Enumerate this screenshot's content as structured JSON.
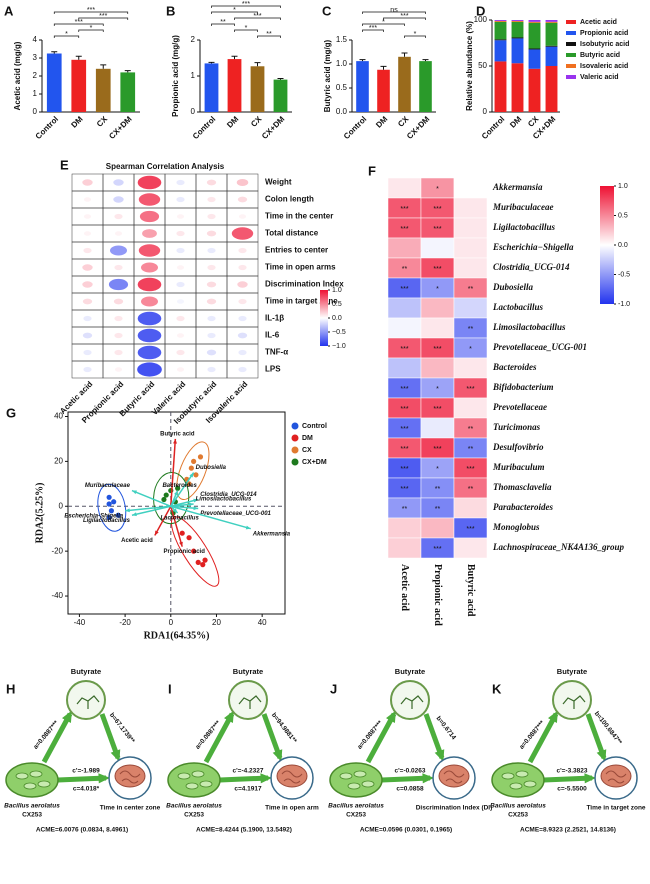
{
  "chart_data": [
    {
      "type": "bar",
      "label": "A",
      "y_label": "Acetic acid (mg/g)",
      "categories": [
        "Control",
        "DM",
        "CX",
        "CX+DM"
      ],
      "values": [
        3.25,
        2.9,
        2.4,
        2.2
      ],
      "errors": [
        0.1,
        0.2,
        0.22,
        0.1
      ],
      "colors": [
        "#2255ee",
        "#ee2222",
        "#9a6b1c",
        "#2a9a2a"
      ],
      "ylim": [
        0,
        4
      ],
      "yticks": [
        0,
        1,
        2,
        3,
        4
      ],
      "brackets": [
        {
          "pair": [
            "Control",
            "CX+DM"
          ],
          "label": "***"
        },
        {
          "pair": [
            "DM",
            "CX+DM"
          ],
          "label": "***"
        },
        {
          "pair": [
            "Control",
            "CX"
          ],
          "label": "***"
        },
        {
          "pair": [
            "DM",
            "CX"
          ],
          "label": "*"
        },
        {
          "pair": [
            "Control",
            "DM"
          ],
          "label": "*"
        }
      ]
    },
    {
      "type": "bar",
      "label": "B",
      "y_label": "Propionic acid (mg/g)",
      "categories": [
        "Control",
        "DM",
        "CX",
        "CX+DM"
      ],
      "values": [
        1.35,
        1.47,
        1.27,
        0.9
      ],
      "errors": [
        0.03,
        0.08,
        0.1,
        0.03
      ],
      "colors": [
        "#2255ee",
        "#ee2222",
        "#9a6b1c",
        "#2a9a2a"
      ],
      "ylim": [
        0,
        2
      ],
      "yticks": [
        0,
        1,
        2
      ],
      "brackets": [
        {
          "pair": [
            "Control",
            "CX+DM"
          ],
          "label": "***"
        },
        {
          "pair": [
            "Control",
            "CX"
          ],
          "label": "*"
        },
        {
          "pair": [
            "DM",
            "CX+DM"
          ],
          "label": "***"
        },
        {
          "pair": [
            "Control",
            "DM"
          ],
          "label": "**"
        },
        {
          "pair": [
            "DM",
            "CX"
          ],
          "label": "*"
        },
        {
          "pair": [
            "CX",
            "CX+DM"
          ],
          "label": "**"
        }
      ]
    },
    {
      "type": "bar",
      "label": "C",
      "y_label": "Butyric acid (mg/g)",
      "categories": [
        "Control",
        "DM",
        "CX",
        "CX+DM"
      ],
      "values": [
        1.06,
        0.88,
        1.15,
        1.06
      ],
      "errors": [
        0.03,
        0.07,
        0.08,
        0.03
      ],
      "colors": [
        "#2255ee",
        "#ee2222",
        "#9a6b1c",
        "#2a9a2a"
      ],
      "ylim": [
        0,
        1.5
      ],
      "yticks": [
        {
          "value": 0,
          "label": "0.0"
        },
        0.5,
        {
          "value": 1,
          "label": "1.0"
        },
        1.5
      ],
      "brackets": [
        {
          "pair": [
            "Control",
            "CX+DM"
          ],
          "label": "ns"
        },
        {
          "pair": [
            "DM",
            "CX+DM"
          ],
          "label": "***"
        },
        {
          "pair": [
            "Control",
            "CX"
          ],
          "label": "*"
        },
        {
          "pair": [
            "Control",
            "DM"
          ],
          "label": "***"
        },
        {
          "pair": [
            "CX",
            "CX+DM"
          ],
          "label": "*"
        }
      ]
    },
    {
      "type": "stacked_bar",
      "label": "D",
      "y_label": "Relative abundance (%)",
      "categories": [
        "Control",
        "DM",
        "CX",
        "CX+DM"
      ],
      "ylim": [
        0,
        100
      ],
      "yticks": [
        0,
        50,
        100
      ],
      "series": [
        {
          "name": "Acetic acid",
          "color": "#ee2222",
          "values": [
            55,
            53,
            47,
            50
          ]
        },
        {
          "name": "Propionic acid",
          "color": "#2255ee",
          "values": [
            23,
            27,
            21,
            21
          ]
        },
        {
          "name": "Isobutyric acid",
          "color": "#111111",
          "values": [
            1,
            1,
            1,
            1
          ]
        },
        {
          "name": "Butyric acid",
          "color": "#2a9a2a",
          "values": [
            19,
            17,
            28,
            25
          ]
        },
        {
          "name": "Isovaleric acid",
          "color": "#f07020",
          "values": [
            1,
            1,
            1,
            1
          ]
        },
        {
          "name": "Valeric acid",
          "color": "#9933ee",
          "values": [
            1,
            1,
            2,
            2
          ]
        }
      ]
    },
    {
      "type": "bubble_matrix",
      "label": "E",
      "title": "Spearman Correlation Analysis",
      "rows": [
        "Weight",
        "Colon length",
        "Time in the center",
        "Total distance",
        "Entries to center",
        "Time in open arms",
        "Discrimination Index",
        "Time in target zone",
        "IL-1β",
        "IL-6",
        "TNF-α",
        "LPS"
      ],
      "columns": [
        "Acetic acid",
        "Propionic acid",
        "Butyric acid",
        "Valeric acid",
        "Isobutyric acid",
        "Isovaleric acid"
      ],
      "values": [
        [
          0.2,
          -0.2,
          0.8,
          -0.1,
          0.15,
          0.25
        ],
        [
          0.05,
          -0.2,
          0.7,
          -0.1,
          0.1,
          0.15
        ],
        [
          0.05,
          0.1,
          0.6,
          0.05,
          0.1,
          0.05
        ],
        [
          0.05,
          0.05,
          0.4,
          0.1,
          0.15,
          0.7
        ],
        [
          0.1,
          -0.5,
          0.7,
          -0.1,
          -0.1,
          0.1
        ],
        [
          0.2,
          0.1,
          0.5,
          0.05,
          0.1,
          0.1
        ],
        [
          0.2,
          -0.6,
          0.8,
          -0.1,
          0.15,
          0.2
        ],
        [
          0.15,
          0.15,
          0.5,
          -0.05,
          0.15,
          0.1
        ],
        [
          -0.1,
          0.1,
          -0.8,
          0.1,
          -0.1,
          -0.1
        ],
        [
          -0.15,
          0.1,
          -0.8,
          0.05,
          -0.1,
          -0.15
        ],
        [
          -0.1,
          0.1,
          -0.8,
          0.1,
          -0.15,
          -0.1
        ],
        [
          -0.1,
          0.05,
          -0.85,
          0.05,
          -0.1,
          -0.1
        ]
      ],
      "colormap": [
        "#2233ee",
        "#ffffff",
        "#ee1133"
      ],
      "clim": [
        -1,
        1
      ],
      "colorbar_ticks": [
        {
          "value": 1,
          "label": "1.0"
        },
        0.5,
        {
          "value": 0,
          "label": "0.0"
        },
        {
          "value": -0.5,
          "label": "−0.5"
        },
        {
          "value": -1,
          "label": "−1.0"
        }
      ]
    },
    {
      "type": "heatmap",
      "label": "F",
      "rows": [
        "Akkermansia",
        "Muribaculaceae",
        "Ligilactobacillus",
        "Escherichia−Shigella",
        "Clostridia_UCG-014",
        "Dubosiella",
        "Lactobacillus",
        "Limosilactobacillus",
        "Prevotellaceae_UCG-001",
        "Bacteroides",
        "Bifidobacterium",
        "Prevotellaceae",
        "Turicimonas",
        "Desulfovibrio",
        "Muribaculum",
        "Thomasclavelia",
        "Parabacteroides",
        "Monoglobus",
        "Lachnospiraceae_NK4A136_group"
      ],
      "columns": [
        "Acetic acid",
        "Propionic acid",
        "Butyric acid"
      ],
      "values": [
        [
          0.1,
          0.45,
          0.0
        ],
        [
          0.7,
          0.7,
          0.1
        ],
        [
          0.7,
          0.7,
          0.1
        ],
        [
          0.35,
          -0.05,
          0.1
        ],
        [
          0.5,
          0.75,
          0.1
        ],
        [
          -0.75,
          -0.5,
          0.55
        ],
        [
          -0.3,
          0.3,
          -0.2
        ],
        [
          -0.05,
          0.1,
          -0.6
        ],
        [
          0.7,
          0.75,
          -0.5
        ],
        [
          -0.3,
          0.3,
          0.1
        ],
        [
          -0.7,
          -0.45,
          0.7
        ],
        [
          0.75,
          0.75,
          0.1
        ],
        [
          -0.7,
          -0.1,
          0.55
        ],
        [
          0.7,
          0.8,
          -0.6
        ],
        [
          -0.8,
          -0.45,
          0.75
        ],
        [
          -0.75,
          -0.55,
          0.6
        ],
        [
          -0.5,
          -0.6,
          0.15
        ],
        [
          0.2,
          0.3,
          -0.75
        ],
        [
          0.2,
          -0.7,
          0.1
        ]
      ],
      "annotations": [
        [
          null,
          "*",
          null
        ],
        [
          "***",
          "***",
          null
        ],
        [
          "***",
          "***",
          null
        ],
        [
          null,
          null,
          null
        ],
        [
          "**",
          "***",
          null
        ],
        [
          "***",
          "*",
          "**"
        ],
        [
          null,
          null,
          null
        ],
        [
          null,
          null,
          "**"
        ],
        [
          "***",
          "***",
          "*"
        ],
        [
          null,
          null,
          null
        ],
        [
          "***",
          "*",
          "***"
        ],
        [
          "***",
          "***",
          null
        ],
        [
          "***",
          null,
          "**"
        ],
        [
          "***",
          "***",
          "**"
        ],
        [
          "***",
          "*",
          "***"
        ],
        [
          "***",
          "**",
          "**"
        ],
        [
          "**",
          "**",
          null
        ],
        [
          null,
          null,
          "***"
        ],
        [
          null,
          "***",
          null
        ]
      ],
      "colormap": [
        "#2233ee",
        "#ffffff",
        "#ee1133"
      ],
      "clim": [
        -1,
        1
      ],
      "colorbar_ticks": [
        {
          "value": 1,
          "label": "1.0"
        },
        0.5,
        {
          "value": 0,
          "label": "0.0"
        },
        -0.5,
        {
          "value": -1,
          "label": "-1.0"
        }
      ]
    },
    {
      "type": "biplot",
      "label": "G",
      "x_label": "RDA1(64.35%)",
      "y_label": "RDA2(5.25%)",
      "xlim": [
        -45,
        50
      ],
      "ylim": [
        -48,
        42
      ],
      "xticks": [
        -40,
        -20,
        0,
        20,
        40
      ],
      "yticks": [
        -40,
        -20,
        0,
        20,
        40
      ],
      "series": [
        {
          "name": "Control",
          "color": "#2255dd",
          "x": [
            -27,
            -27,
            -26,
            -27,
            -23,
            -25
          ],
          "y": [
            4,
            1,
            -2,
            -5,
            -4,
            2
          ]
        },
        {
          "name": "DM",
          "color": "#e02020",
          "x": [
            12,
            14,
            15,
            8,
            10,
            5
          ],
          "y": [
            -25,
            -26,
            -24,
            -14,
            -20,
            -12
          ]
        },
        {
          "name": "CX",
          "color": "#e07a30",
          "x": [
            10,
            9,
            11,
            7,
            13,
            8
          ],
          "y": [
            20,
            17,
            14,
            12,
            22,
            10
          ]
        },
        {
          "name": "CX+DM",
          "color": "#1e7a1e",
          "x": [
            0,
            -2,
            3,
            2,
            -3,
            1
          ],
          "y": [
            7,
            5,
            8,
            2,
            3,
            -3
          ]
        }
      ],
      "vectors": [
        {
          "name": "Butyric acid",
          "color": "#dd2222",
          "x": 2,
          "y": 30
        },
        {
          "name": "Acetic acid",
          "color": "#dd2222",
          "x": -7,
          "y": -13
        },
        {
          "name": "Propionic acid",
          "color": "#dd2222",
          "x": 5,
          "y": -18
        },
        {
          "name": "Dubosiella",
          "color": "#40d0c0",
          "x": 10,
          "y": 15
        },
        {
          "name": "Muribaculaceae",
          "color": "#40d0c0",
          "x": -17,
          "y": 7
        },
        {
          "name": "Escherichia-Shigella",
          "color": "#40d0c0",
          "x": -20,
          "y": -2
        },
        {
          "name": "Ligilactobacillus",
          "color": "#40d0c0",
          "x": -17,
          "y": -4
        },
        {
          "name": "Bacteroides",
          "color": "#40d0c0",
          "x": 3,
          "y": 7
        },
        {
          "name": "Clostridia_UCG-014",
          "color": "#40d0c0",
          "x": 12,
          "y": 3
        },
        {
          "name": "Limosilactobacillus",
          "color": "#40d0c0",
          "x": 10,
          "y": 1
        },
        {
          "name": "Prevotellaceae_UCG-001",
          "color": "#40d0c0",
          "x": 12,
          "y": -1
        },
        {
          "name": "Lactobacillus",
          "color": "#40d0c0",
          "x": 3,
          "y": -3
        },
        {
          "name": "Akkermansia",
          "color": "#40d0c0",
          "x": 35,
          "y": -10
        }
      ]
    }
  ],
  "diagrams": [
    {
      "label": "H",
      "mediator": "Butyrate",
      "a": "a=0.0887***",
      "b": "b=67.1739**",
      "c_prime": "c'=-1.989",
      "c": "c=4.018*",
      "exposure": "Bacillus aerolatus",
      "strain": "CX253",
      "outcome": "Time in center zone",
      "acme": "ACME=6.0076 (0.0834, 8.4961)"
    },
    {
      "label": "I",
      "mediator": "Butyrate",
      "a": "a=0.0887***",
      "b": "b=94.9881**",
      "c_prime": "c'=-4.2327",
      "c": "c=4.1917",
      "exposure": "Bacillus aerolatus",
      "strain": "CX253",
      "outcome": "Time in open arm",
      "acme": "ACME=8.4244 (5.1900, 13.5492)"
    },
    {
      "label": "J",
      "mediator": "Butyrate",
      "a": "a=0.0887***",
      "b": "b=0.6714",
      "c_prime": "c'=-0.0263",
      "c": "c=0.0858",
      "exposure": "Bacillus aerolatus",
      "strain": "CX253",
      "outcome": "Discrimination Index (DI)",
      "acme": "ACME=0.0596 (0.0301, 0.1965)"
    },
    {
      "label": "K",
      "mediator": "Butyrate",
      "a": "a=0.0887***",
      "b": "b=100.6847**",
      "c_prime": "c'=-3.3823",
      "c": "c=-5.5500",
      "exposure": "Bacillus aerolatus",
      "strain": "CX253",
      "outcome": "Time in target zone",
      "acme": "ACME=8.9323 (2.2521, 14.8136)"
    }
  ]
}
